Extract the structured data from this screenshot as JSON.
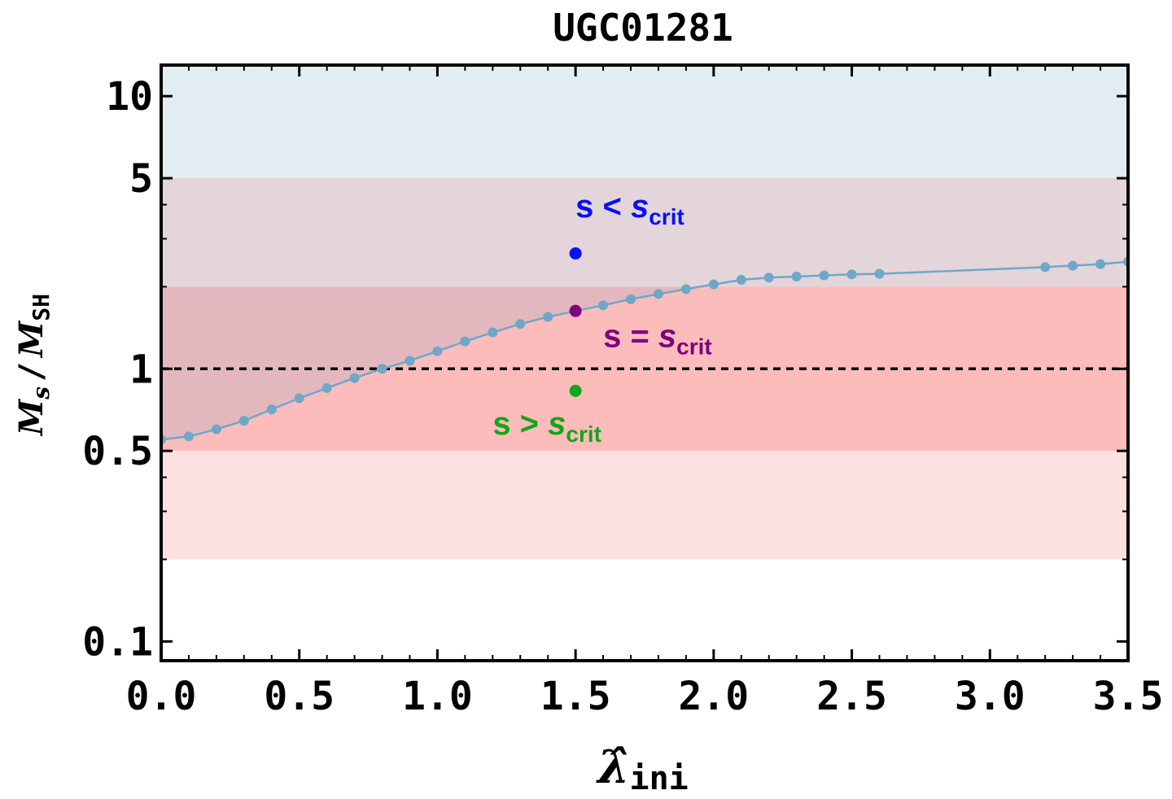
{
  "chart_data": {
    "type": "line",
    "title": "UGC01281",
    "xlabel": {
      "main": "λ̂",
      "sub": "ini"
    },
    "ylabel": {
      "num_main": "M",
      "num_sub": "s",
      "sep": "/",
      "den_main": "M",
      "den_sub": "SH"
    },
    "xlim": [
      0.0,
      3.5
    ],
    "ylim": [
      0.085,
      13
    ],
    "y_scale": "log",
    "grid": false,
    "x_ticks": [
      {
        "value": 0.0,
        "label": "0.0"
      },
      {
        "value": 0.5,
        "label": "0.5"
      },
      {
        "value": 1.0,
        "label": "1.0"
      },
      {
        "value": 1.5,
        "label": "1.5"
      },
      {
        "value": 2.0,
        "label": "2.0"
      },
      {
        "value": 2.5,
        "label": "2.5"
      },
      {
        "value": 3.0,
        "label": "3.0"
      },
      {
        "value": 3.5,
        "label": "3.5"
      }
    ],
    "y_ticks": [
      {
        "value": 0.1,
        "label": "0.1"
      },
      {
        "value": 0.5,
        "label": "0.5"
      },
      {
        "value": 1,
        "label": "1"
      },
      {
        "value": 5,
        "label": "5"
      },
      {
        "value": 10,
        "label": "10"
      }
    ],
    "bands": [
      {
        "y_from": 5,
        "y_to": 13,
        "color": "#e2edf3"
      },
      {
        "y_from": 2,
        "y_to": 5,
        "color": "#e3d5da"
      },
      {
        "y_from": 0.5,
        "y_to": 2,
        "color": "#e2b8be"
      },
      {
        "y_from": 0.2,
        "y_to": 0.5,
        "color": "#fde0e2"
      }
    ],
    "fill_under_curve": {
      "y_floor": 0.2,
      "y_ceiling": 2,
      "color": "#fdbcbc",
      "below_color": "#fde0e2"
    },
    "reference_line": {
      "y": 1,
      "style": "dashed",
      "color": "#000000"
    },
    "series": [
      {
        "color": "#6fa7c8",
        "x": [
          0.0,
          0.1,
          0.2,
          0.3,
          0.4,
          0.5,
          0.6,
          0.7,
          0.8,
          0.9,
          1.0,
          1.1,
          1.2,
          1.3,
          1.4,
          1.5,
          1.6,
          1.7,
          1.8,
          1.9,
          2.0,
          2.1,
          2.2,
          2.3,
          2.4,
          2.5,
          2.6,
          3.2,
          3.3,
          3.4,
          3.5
        ],
        "y": [
          0.55,
          0.565,
          0.6,
          0.645,
          0.71,
          0.78,
          0.85,
          0.925,
          1.0,
          1.07,
          1.16,
          1.26,
          1.36,
          1.46,
          1.55,
          1.63,
          1.71,
          1.8,
          1.88,
          1.96,
          2.04,
          2.12,
          2.16,
          2.18,
          2.2,
          2.22,
          2.23,
          2.36,
          2.39,
          2.42,
          2.47
        ]
      }
    ],
    "markers": [
      {
        "x": 1.5,
        "y": 2.65,
        "color": "#0a10f0"
      },
      {
        "x": 1.5,
        "y": 1.63,
        "color": "#7f007f"
      },
      {
        "x": 1.5,
        "y": 0.83,
        "color": "#12a51a"
      }
    ],
    "annotations": [
      {
        "x": 1.5,
        "y": 3.6,
        "anchor": "start",
        "main": "s < ",
        "var": "s",
        "sub": "crit",
        "color": "#0a10f0"
      },
      {
        "x": 1.6,
        "y": 1.2,
        "anchor": "start",
        "main": "s = ",
        "var": "s",
        "sub": "crit",
        "color": "#7f007f"
      },
      {
        "x": 1.2,
        "y": 0.575,
        "anchor": "start",
        "main": "s > ",
        "var": "s",
        "sub": "crit",
        "color": "#12a51a"
      }
    ]
  }
}
